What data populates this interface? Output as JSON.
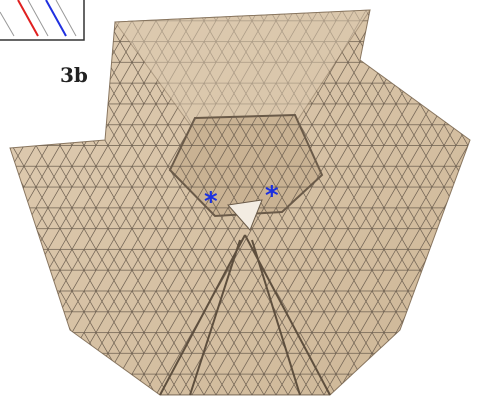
{
  "label": "3b",
  "markers": [
    "*",
    "*"
  ]
}
